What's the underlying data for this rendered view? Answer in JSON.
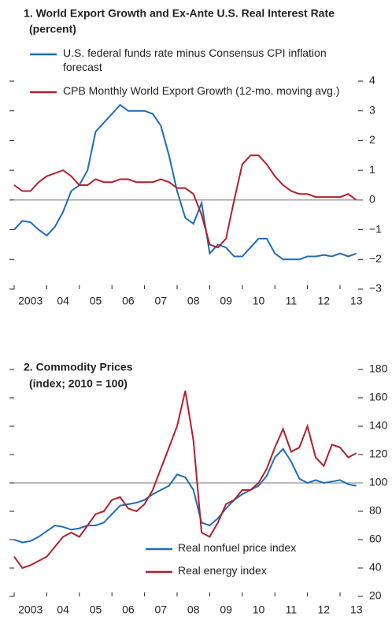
{
  "chart_data": [
    {
      "type": "line",
      "title": "1. World Export Growth and Ex-Ante U.S. Real Interest Rate",
      "subtitle": "(percent)",
      "x": [
        2003,
        2003.25,
        2003.5,
        2003.75,
        2004,
        2004.25,
        2004.5,
        2004.75,
        2005,
        2005.25,
        2005.5,
        2005.75,
        2006,
        2006.25,
        2006.5,
        2006.75,
        2007,
        2007.25,
        2007.5,
        2007.75,
        2008,
        2008.25,
        2008.5,
        2008.75,
        2009,
        2009.25,
        2009.5,
        2009.75,
        2010,
        2010.25,
        2010.5,
        2010.75,
        2011,
        2011.25,
        2011.5,
        2011.75,
        2012,
        2012.25,
        2012.5,
        2012.75,
        2013,
        2013.25,
        2013.5
      ],
      "series": [
        {
          "name": "U.S. federal funds rate minus Consensus CPI inflation forecast",
          "color": "#1f6cb5",
          "values": [
            -1.0,
            -0.7,
            -0.75,
            -1.0,
            -1.2,
            -0.9,
            -0.4,
            0.3,
            0.5,
            1.0,
            2.3,
            2.6,
            2.9,
            3.2,
            3.0,
            3.0,
            3.0,
            2.9,
            2.5,
            1.5,
            0.3,
            -0.6,
            -0.8,
            -0.1,
            -1.8,
            -1.5,
            -1.6,
            -1.9,
            -1.9,
            -1.6,
            -1.3,
            -1.3,
            -1.8,
            -2.0,
            -2.0,
            -2.0,
            -1.9,
            -1.9,
            -1.85,
            -1.9,
            -1.8,
            -1.9,
            -1.8
          ]
        },
        {
          "name": "CPB Monthly World Export Growth (12-mo. moving avg.)",
          "color": "#b0202e",
          "values": [
            0.5,
            0.3,
            0.3,
            0.6,
            0.8,
            0.9,
            1.0,
            0.8,
            0.5,
            0.5,
            0.7,
            0.6,
            0.6,
            0.7,
            0.7,
            0.6,
            0.6,
            0.6,
            0.7,
            0.6,
            0.4,
            0.4,
            0.2,
            -0.5,
            -1.5,
            -1.6,
            -1.3,
            0.0,
            1.2,
            1.5,
            1.5,
            1.2,
            0.8,
            0.5,
            0.3,
            0.2,
            0.2,
            0.1,
            0.1,
            0.1,
            0.1,
            0.2,
            0.0
          ]
        }
      ],
      "reference_line": 0,
      "xlim": [
        2003,
        2013.7
      ],
      "xticks": [
        {
          "value": 2003,
          "label": "2003"
        },
        {
          "value": 2004,
          "label": "04"
        },
        {
          "value": 2005,
          "label": "05"
        },
        {
          "value": 2006,
          "label": "06"
        },
        {
          "value": 2007,
          "label": "07"
        },
        {
          "value": 2008,
          "label": "08"
        },
        {
          "value": 2009,
          "label": "09"
        },
        {
          "value": 2010,
          "label": "10"
        },
        {
          "value": 2011,
          "label": "11"
        },
        {
          "value": 2012,
          "label": "12"
        },
        {
          "value": 2013,
          "label": "13"
        }
      ],
      "ylim": [
        -3,
        4
      ],
      "yticks": [
        4,
        3,
        2,
        1,
        0,
        {
          "value": -1,
          "label": "−1"
        },
        {
          "value": -2,
          "label": "−2"
        },
        {
          "value": -3,
          "label": "−3"
        }
      ],
      "legend": "upper left"
    },
    {
      "type": "line",
      "title": "2. Commodity Prices",
      "subtitle": "(index; 2010 = 100)",
      "x": [
        2003,
        2003.25,
        2003.5,
        2003.75,
        2004,
        2004.25,
        2004.5,
        2004.75,
        2005,
        2005.25,
        2005.5,
        2005.75,
        2006,
        2006.25,
        2006.5,
        2006.75,
        2007,
        2007.25,
        2007.5,
        2007.75,
        2008,
        2008.25,
        2008.5,
        2008.75,
        2009,
        2009.25,
        2009.5,
        2009.75,
        2010,
        2010.25,
        2010.5,
        2010.75,
        2011,
        2011.25,
        2011.5,
        2011.75,
        2012,
        2012.25,
        2012.5,
        2012.75,
        2013,
        2013.25,
        2013.5
      ],
      "series": [
        {
          "name": "Real nonfuel price index",
          "color": "#1f6cb5",
          "values": [
            60,
            58,
            59,
            62,
            66,
            70,
            69,
            67,
            68,
            70,
            70,
            72,
            78,
            84,
            85,
            86,
            88,
            92,
            95,
            98,
            106,
            104,
            95,
            72,
            70,
            75,
            82,
            88,
            92,
            95,
            98,
            105,
            118,
            124,
            115,
            103,
            100,
            102,
            100,
            101,
            102,
            99,
            98
          ]
        },
        {
          "name": "Real energy index",
          "color": "#b0202e",
          "values": [
            48,
            40,
            42,
            45,
            48,
            55,
            62,
            65,
            62,
            70,
            78,
            80,
            88,
            90,
            82,
            80,
            85,
            95,
            110,
            125,
            140,
            165,
            130,
            65,
            62,
            72,
            85,
            88,
            95,
            95,
            100,
            110,
            125,
            138,
            122,
            125,
            140,
            118,
            112,
            127,
            125,
            118,
            121
          ]
        }
      ],
      "reference_line": 100,
      "xlim": [
        2003,
        2013.7
      ],
      "xticks": [
        {
          "value": 2003,
          "label": "2003"
        },
        {
          "value": 2004,
          "label": "04"
        },
        {
          "value": 2005,
          "label": "05"
        },
        {
          "value": 2006,
          "label": "06"
        },
        {
          "value": 2007,
          "label": "07"
        },
        {
          "value": 2008,
          "label": "08"
        },
        {
          "value": 2009,
          "label": "09"
        },
        {
          "value": 2010,
          "label": "10"
        },
        {
          "value": 2011,
          "label": "11"
        },
        {
          "value": 2012,
          "label": "12"
        },
        {
          "value": 2013,
          "label": "13"
        }
      ],
      "ylim": [
        20,
        180
      ],
      "yticks": [
        180,
        160,
        140,
        120,
        100,
        80,
        60,
        40,
        20
      ],
      "legend": "lower right"
    }
  ]
}
